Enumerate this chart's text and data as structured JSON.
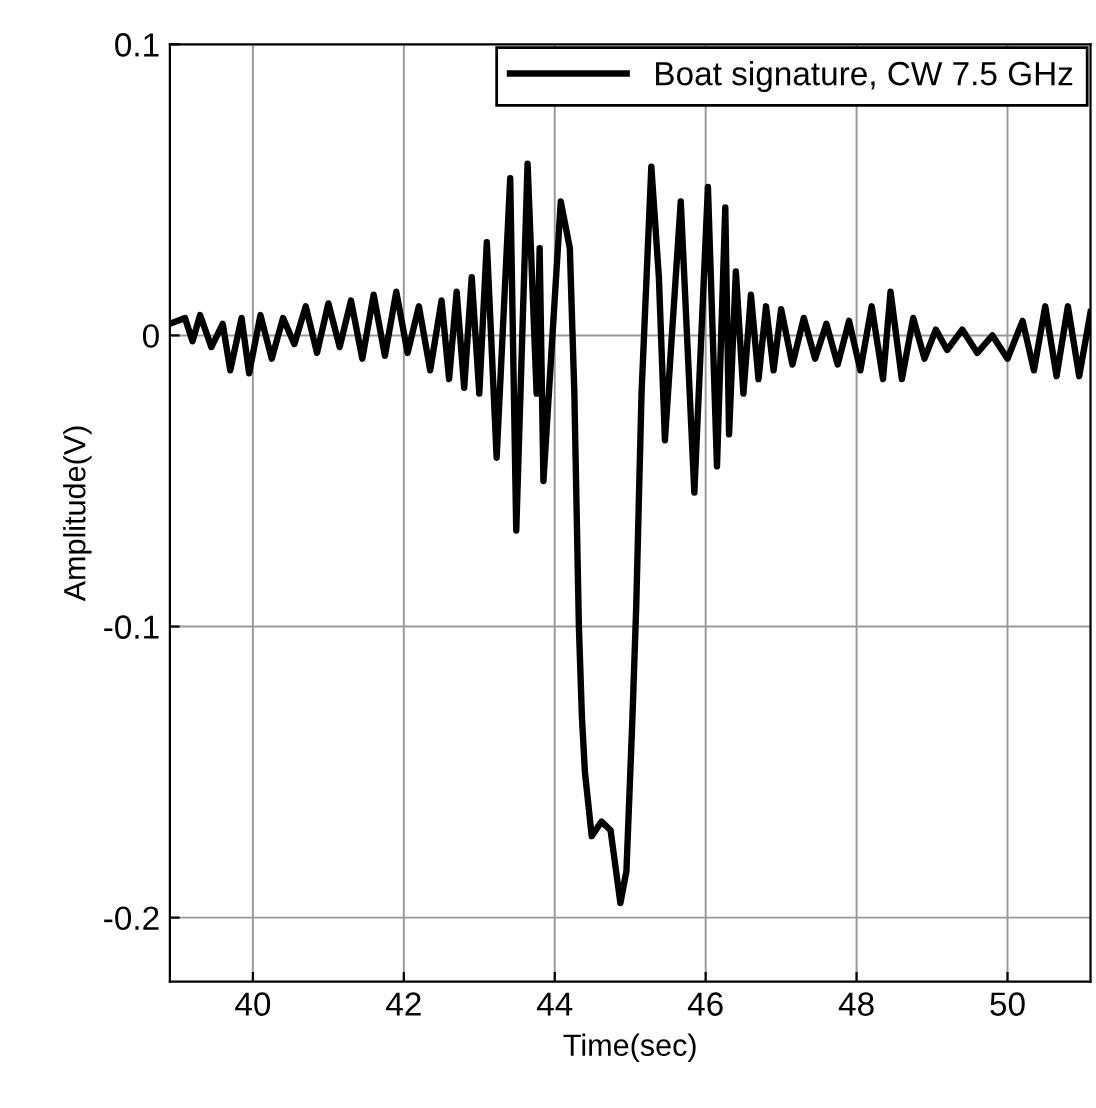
{
  "chart_data": {
    "type": "line",
    "xlabel": "Time(sec)",
    "ylabel": "Amplitude(V)",
    "xlim": [
      38.9,
      51.1
    ],
    "ylim": [
      -0.222,
      0.1
    ],
    "xticks": [
      40,
      42,
      44,
      46,
      48,
      50
    ],
    "yticks": [
      0.1,
      0,
      -0.1,
      -0.2
    ],
    "grid": true,
    "legend": "top right",
    "marker": "none",
    "line_style": "solid",
    "series": [
      {
        "name": "Boat signature, CW 7.5 GHz",
        "color": "#000000",
        "x": [
          38.9,
          39.1,
          39.2,
          39.3,
          39.45,
          39.6,
          39.7,
          39.85,
          39.95,
          40.1,
          40.25,
          40.4,
          40.55,
          40.7,
          40.85,
          41.0,
          41.15,
          41.3,
          41.45,
          41.6,
          41.75,
          41.9,
          42.05,
          42.2,
          42.35,
          42.5,
          42.6,
          42.7,
          42.8,
          42.9,
          43.0,
          43.1,
          43.23,
          43.41,
          43.49,
          43.64,
          43.76,
          43.8,
          43.85,
          44.08,
          44.2,
          44.26,
          44.32,
          44.36,
          44.4,
          44.49,
          44.62,
          44.74,
          44.87,
          44.95,
          45.03,
          45.08,
          45.15,
          45.28,
          45.38,
          45.46,
          45.67,
          45.85,
          46.03,
          46.15,
          46.26,
          46.31,
          46.4,
          46.5,
          46.6,
          46.7,
          46.8,
          46.9,
          47.0,
          47.15,
          47.3,
          47.45,
          47.6,
          47.75,
          47.9,
          48.05,
          48.2,
          48.35,
          48.45,
          48.6,
          48.75,
          48.9,
          49.05,
          49.2,
          49.4,
          49.6,
          49.8,
          50.0,
          50.2,
          50.35,
          50.5,
          50.65,
          50.8,
          50.95,
          51.1
        ],
        "values": [
          0.004,
          0.006,
          -0.002,
          0.007,
          -0.004,
          0.004,
          -0.012,
          0.006,
          -0.013,
          0.007,
          -0.008,
          0.006,
          -0.003,
          0.01,
          -0.006,
          0.011,
          -0.004,
          0.012,
          -0.008,
          0.014,
          -0.007,
          0.015,
          -0.006,
          0.01,
          -0.012,
          0.012,
          -0.015,
          0.015,
          -0.018,
          0.02,
          -0.02,
          0.032,
          -0.042,
          0.054,
          -0.067,
          0.059,
          -0.02,
          0.03,
          -0.05,
          0.046,
          0.03,
          -0.02,
          -0.1,
          -0.131,
          -0.15,
          -0.172,
          -0.167,
          -0.17,
          -0.195,
          -0.184,
          -0.131,
          -0.093,
          -0.02,
          0.058,
          0.02,
          -0.036,
          0.046,
          -0.054,
          0.051,
          -0.045,
          0.044,
          -0.034,
          0.022,
          -0.02,
          0.014,
          -0.015,
          0.01,
          -0.012,
          0.009,
          -0.01,
          0.006,
          -0.008,
          0.004,
          -0.01,
          0.005,
          -0.012,
          0.01,
          -0.015,
          0.015,
          -0.015,
          0.006,
          -0.008,
          0.002,
          -0.005,
          0.002,
          -0.006,
          0.0,
          -0.008,
          0.005,
          -0.012,
          0.01,
          -0.014,
          0.01,
          -0.014,
          0.008
        ]
      }
    ]
  }
}
